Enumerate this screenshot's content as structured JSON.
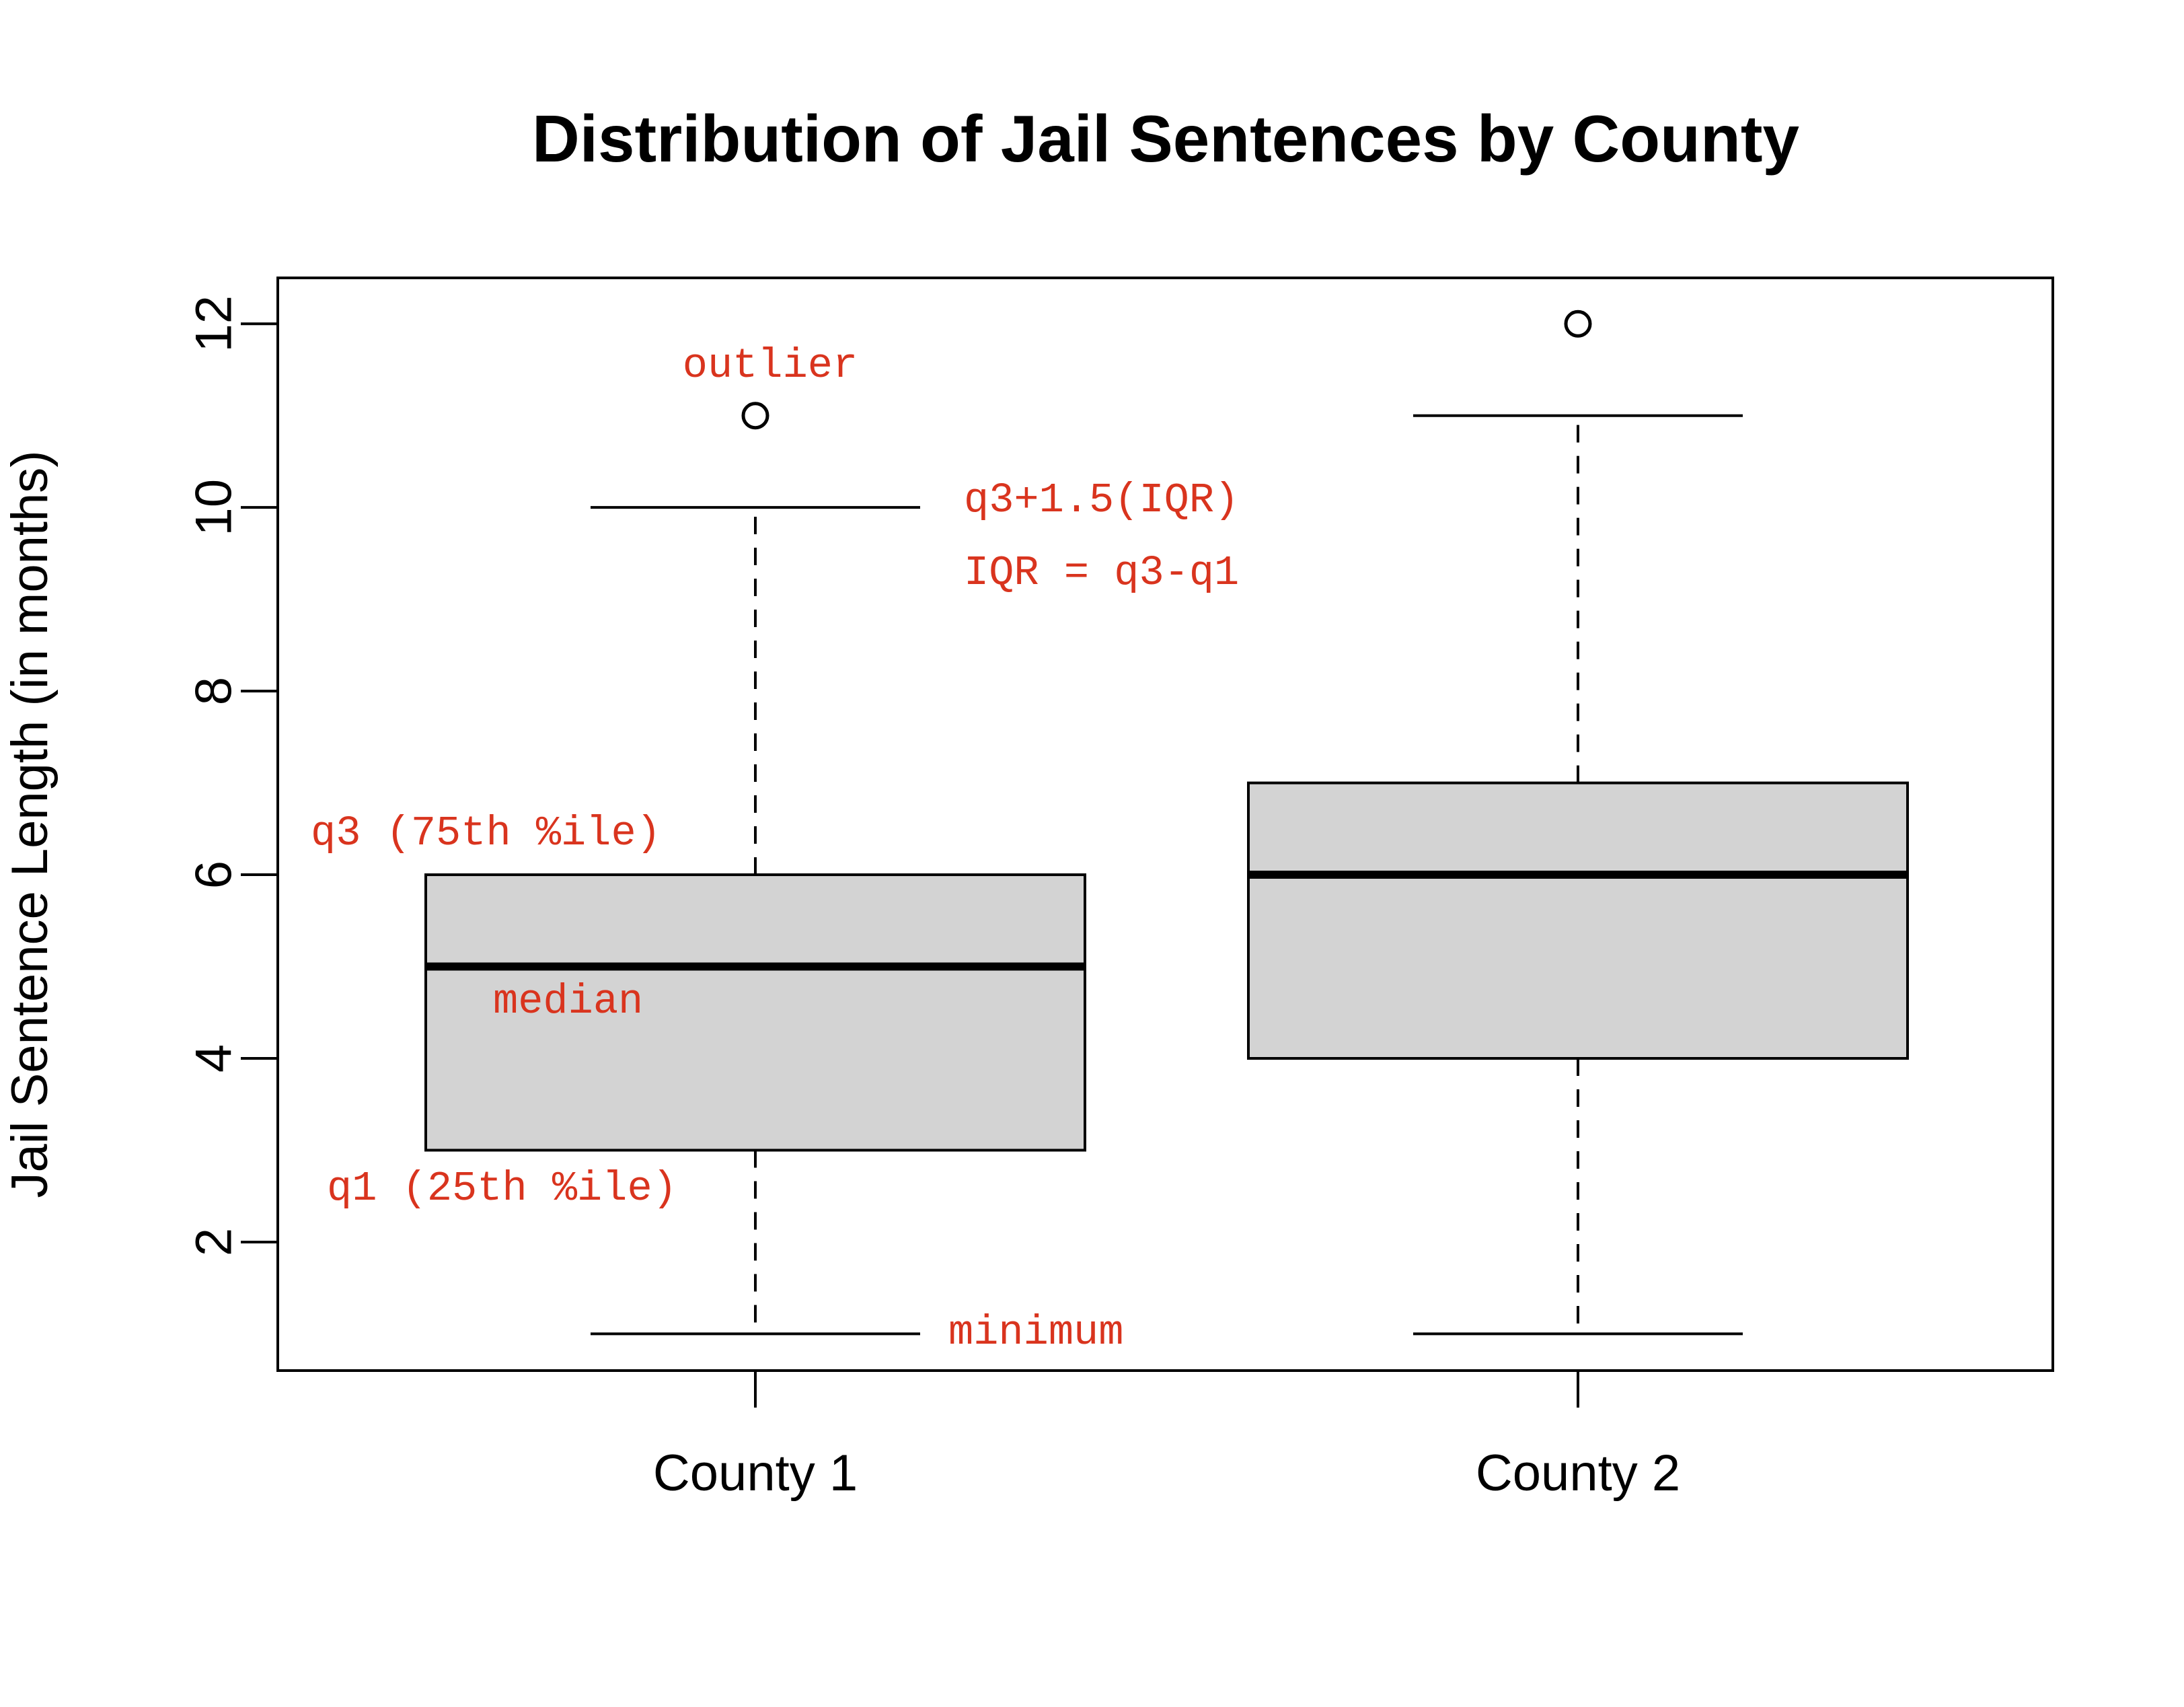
{
  "chart_data": {
    "type": "boxplot",
    "title": "Distribution of Jail Sentences by County",
    "xlabel": "",
    "ylabel": "Jail Sentence Length (in months)",
    "ylim": [
      0.6,
      12.5
    ],
    "yticks": [
      2,
      4,
      6,
      8,
      10,
      12
    ],
    "categories": [
      "County 1",
      "County 2"
    ],
    "boxes": [
      {
        "category": "County 1",
        "whisker_low": 1,
        "q1": 3,
        "median": 5,
        "q3": 6,
        "whisker_high": 10,
        "outliers": [
          11
        ]
      },
      {
        "category": "County 2",
        "whisker_low": 1,
        "q1": 4,
        "median": 6,
        "q3": 7,
        "whisker_high": 11,
        "outliers": [
          12
        ]
      }
    ],
    "box_fill": "#d3d3d3",
    "annotation_color": "#d9341e",
    "annotations": [
      {
        "text": "outlier"
      },
      {
        "text": "q3+1.5(IQR)"
      },
      {
        "text": "IQR = q3-q1"
      },
      {
        "text": "q3 (75th %ile)"
      },
      {
        "text": "median"
      },
      {
        "text": "q1 (25th %ile)"
      },
      {
        "text": "minimum"
      }
    ],
    "grid": false
  }
}
